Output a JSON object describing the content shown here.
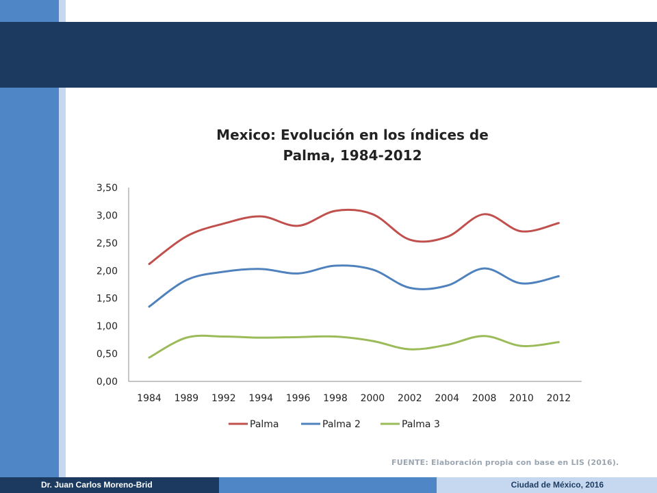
{
  "colors": {
    "header": "#1c3a5f",
    "accent_blue": "#4f86c6",
    "light_blue": "#c6d8ef",
    "series_palma": "#c0504d",
    "series_palma2": "#4f81bd",
    "series_palma3": "#9bbb59"
  },
  "chart_data": {
    "type": "line",
    "title_lines": [
      "Mexico: Evolución en los índices de",
      "Palma, 1984-2012"
    ],
    "categories": [
      "1984",
      "1989",
      "1992",
      "1994",
      "1996",
      "1998",
      "2000",
      "2002",
      "2004",
      "2008",
      "2010",
      "2012"
    ],
    "y_tick_labels": [
      "0,00",
      "0,50",
      "1,00",
      "1,50",
      "2,00",
      "2,50",
      "3,00",
      "3,50"
    ],
    "ylim": [
      0,
      3.5
    ],
    "grid": false,
    "legend_position": "bottom",
    "series": [
      {
        "name": "Palma",
        "color": "#c0504d",
        "values": [
          2.12,
          2.62,
          2.85,
          2.98,
          2.81,
          3.08,
          3.02,
          2.56,
          2.61,
          3.02,
          2.71,
          2.86
        ]
      },
      {
        "name": "Palma 2",
        "color": "#4f81bd",
        "values": [
          1.35,
          1.83,
          1.98,
          2.03,
          1.95,
          2.09,
          2.02,
          1.69,
          1.73,
          2.04,
          1.77,
          1.9
        ]
      },
      {
        "name": "Palma 3",
        "color": "#9bbb59",
        "values": [
          0.43,
          0.79,
          0.81,
          0.79,
          0.8,
          0.81,
          0.73,
          0.58,
          0.66,
          0.82,
          0.64,
          0.71
        ]
      }
    ]
  },
  "footer": {
    "source_label": "FUENTE:",
    "source_text": "Elaboración propia con base en LIS (2016).",
    "author": "Dr. Juan Carlos Moreno-Brid",
    "place_date": "Ciudad de México, 2016"
  }
}
